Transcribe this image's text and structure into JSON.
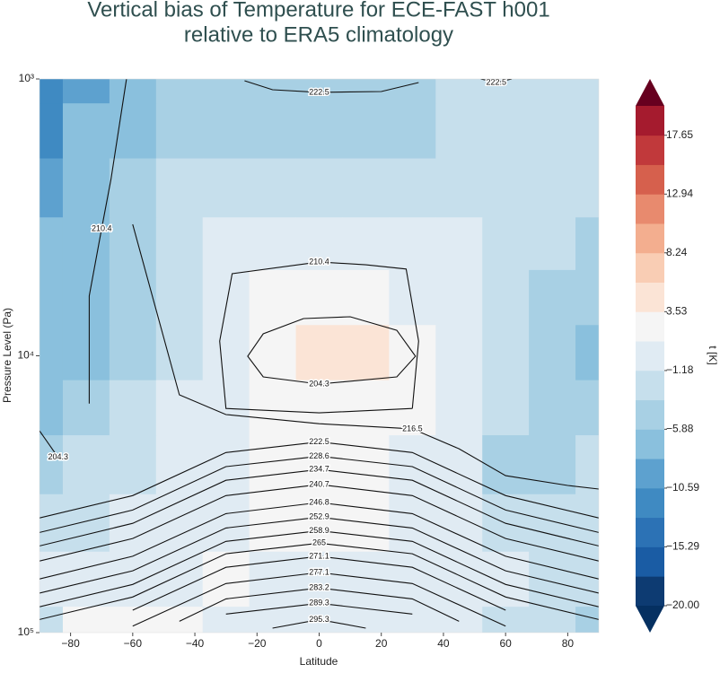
{
  "chart_data": {
    "type": "contour",
    "title": "Vertical bias of Temperature for ECE-FAST h001",
    "subtitle": "relative to ERA5 climatology",
    "xlabel": "Latitude",
    "ylabel": "Pressure Level (Pa)",
    "xlim": [
      -90,
      90
    ],
    "ylim": [
      1000,
      100000
    ],
    "yscale": "log",
    "yinvert": true,
    "xticks": [
      {
        "value": -80,
        "label": "−80"
      },
      {
        "value": -60,
        "label": "−60"
      },
      {
        "value": -40,
        "label": "−40"
      },
      {
        "value": -20,
        "label": "−20"
      },
      0,
      20,
      40,
      60,
      80
    ],
    "yticks": [
      {
        "value": 1000,
        "label": "10³"
      },
      {
        "value": 10000,
        "label": "10⁴"
      },
      {
        "value": 100000,
        "label": "10⁵"
      }
    ],
    "x": [
      -90,
      -75,
      -60,
      -45,
      -30,
      -15,
      0,
      15,
      30,
      45,
      60,
      75,
      90
    ],
    "y": [
      1000,
      1500,
      2500,
      4000,
      6000,
      10000,
      15000,
      25000,
      40000,
      65000,
      100000
    ],
    "z": [
      [
        -12,
        -9,
        -6,
        -5,
        -5,
        -5,
        -5,
        -5,
        -5,
        -3,
        -3,
        -3,
        -3
      ],
      [
        -11,
        -8,
        -6,
        -4,
        -4,
        -4,
        -4,
        -4,
        -4,
        -3,
        -2,
        -2,
        -3
      ],
      [
        -9,
        -7,
        -5,
        -3,
        -2,
        -2,
        -2,
        -2,
        -2,
        -2,
        -2,
        -3,
        -3
      ],
      [
        -8,
        -6,
        -4,
        -2,
        0,
        0,
        0,
        0,
        0,
        -1,
        -2,
        -3,
        -4
      ],
      [
        -7,
        -6,
        -4,
        -2,
        0,
        2,
        2,
        2,
        1,
        0,
        -2,
        -4,
        -5
      ],
      [
        -7,
        -6,
        -4,
        -2,
        1,
        3,
        4,
        4,
        3,
        0,
        -3,
        -5,
        -6
      ],
      [
        -6,
        -5,
        -3,
        -1,
        1,
        2,
        3,
        3,
        2,
        0,
        -3,
        -5,
        -5
      ],
      [
        -4,
        -3,
        -2,
        0,
        1,
        2,
        2,
        2,
        1,
        -1,
        -4,
        -4,
        -3
      ],
      [
        -3,
        -2,
        -1,
        0,
        1,
        2,
        2,
        2,
        1,
        0,
        -2,
        -2,
        -2
      ],
      [
        -1,
        0,
        0,
        1,
        2,
        1,
        1,
        1,
        0,
        -1,
        -1,
        -2,
        -2
      ],
      [
        -2,
        2,
        3,
        2,
        1,
        0,
        0,
        0,
        -1,
        -1,
        -2,
        -3,
        -4
      ]
    ],
    "clim": [
      -20,
      20
    ],
    "colors": [
      "#0d3b72",
      "#1a5ca4",
      "#2c72b5",
      "#3f8ac2",
      "#5da1cf",
      "#8ac0dd",
      "#a8d0e4",
      "#c6dfec",
      "#e0ebf3",
      "#f5f5f5",
      "#fbe4d6",
      "#f9cdb4",
      "#f3ae8f",
      "#e88a6e",
      "#d6604d",
      "#c1393b",
      "#a51b2e"
    ],
    "extend_colors": [
      "#053061",
      "#67001f"
    ],
    "colorbar_label": "t [K]",
    "cticks": [
      {
        "value": -20,
        "label": "−20.00"
      },
      {
        "value": -15.29,
        "label": "−15.29"
      },
      {
        "value": -10.59,
        "label": "−10.59"
      },
      {
        "value": -5.88,
        "label": "−5.88"
      },
      {
        "value": -1.18,
        "label": "−1.18"
      },
      3.53,
      8.24,
      12.94,
      17.65
    ],
    "contours": [
      {
        "level": 222.5,
        "x": [
          -24,
          -15,
          0,
          20,
          32
        ],
        "y": [
          1015,
          1094,
          1118,
          1110,
          1030
        ]
      },
      {
        "level": 222.5,
        "x": [
          52,
          57,
          62
        ],
        "y": [
          1000,
          1030,
          1000
        ]
      },
      {
        "level": 210.4,
        "x": [
          -62,
          -67,
          -70,
          -74,
          -74
        ],
        "y": [
          1000,
          2306,
          3475,
          6080,
          14890
        ]
      },
      {
        "level": 210.4,
        "x": [
          30,
          0,
          -30,
          -32,
          -28,
          0,
          15,
          28,
          32,
          30
        ],
        "y": [
          15500,
          16070,
          15500,
          8845,
          5050,
          4580,
          4690,
          4860,
          8845,
          15500
        ]
      },
      {
        "level": 204.3,
        "x": [
          -5,
          10,
          25,
          31,
          25,
          0,
          -18,
          -23,
          -18,
          -5
        ],
        "y": [
          7338,
          7230,
          8090,
          10040,
          11920,
          12650,
          11920,
          10040,
          8330,
          7338
        ]
      },
      {
        "level": 204.3,
        "x": [
          -90,
          -84
        ],
        "y": [
          18660,
          23300
        ]
      },
      {
        "level": 216.5,
        "x": [
          -60,
          -45,
          -30,
          0,
          30,
          45,
          60,
          80,
          90
        ],
        "y": [
          3350,
          13840,
          16300,
          17600,
          18360,
          21660,
          27100,
          29400,
          30300
        ]
      },
      {
        "level": 222.5,
        "x": [
          -90,
          -60,
          -30,
          0,
          30,
          60,
          90
        ],
        "y": [
          38530,
          31990,
          22350,
          20460,
          22350,
          31990,
          38530
        ]
      },
      {
        "level": 228.6,
        "x": [
          -90,
          -60,
          -30,
          0,
          30,
          60,
          90
        ],
        "y": [
          43480,
          36070,
          25130,
          23050,
          25130,
          36070,
          43480
        ]
      },
      {
        "level": 234.7,
        "x": [
          -90,
          -60,
          -30,
          0,
          30,
          60,
          90
        ],
        "y": [
          48620,
          40300,
          28160,
          25740,
          28160,
          40300,
          48620
        ]
      },
      {
        "level": 240.7,
        "x": [
          -90,
          -60,
          -30,
          0,
          30,
          60,
          90
        ],
        "y": [
          55130,
          45700,
          31990,
          29170,
          31990,
          45700,
          55130
        ]
      },
      {
        "level": 246.8,
        "x": [
          -90,
          -60,
          -30,
          0,
          30,
          60,
          90
        ],
        "y": [
          63990,
          53000,
          37160,
          33880,
          37160,
          53000,
          63990
        ]
      },
      {
        "level": 252.9,
        "x": [
          -90,
          -60,
          -30,
          0,
          30,
          60,
          90
        ],
        "y": [
          72030,
          59800,
          41890,
          38260,
          41890,
          59800,
          72030
        ]
      },
      {
        "level": 258.9,
        "x": [
          -90,
          -60,
          -30,
          0,
          30,
          60,
          90
        ],
        "y": [
          80670,
          66970,
          46800,
          42840,
          46800,
          66970,
          80670
        ]
      },
      {
        "level": 265.0,
        "x": [
          -90,
          -60,
          -30,
          0,
          30,
          60,
          90
        ],
        "y": [
          89680,
          74340,
          51900,
          47530,
          51900,
          74340,
          89680
        ]
      },
      {
        "level": 271.1,
        "x": [
          -60,
          -30,
          0,
          30,
          60
        ],
        "y": [
          83000,
          58100,
          53000,
          58100,
          83000
        ]
      },
      {
        "level": 277.1,
        "x": [
          -60,
          -30,
          0,
          30,
          60
        ],
        "y": [
          94680,
          66500,
          60650,
          66500,
          94680
        ]
      },
      {
        "level": 283.2,
        "x": [
          -45,
          -30,
          0,
          30,
          45
        ],
        "y": [
          91000,
          75530,
          68970,
          75530,
          91000
        ]
      },
      {
        "level": 289.3,
        "x": [
          -30,
          0,
          30
        ],
        "y": [
          85670,
          78330,
          85670
        ]
      },
      {
        "level": 295.3,
        "x": [
          -15,
          0,
          15
        ],
        "y": [
          96350,
          89680,
          96350
        ]
      }
    ]
  }
}
